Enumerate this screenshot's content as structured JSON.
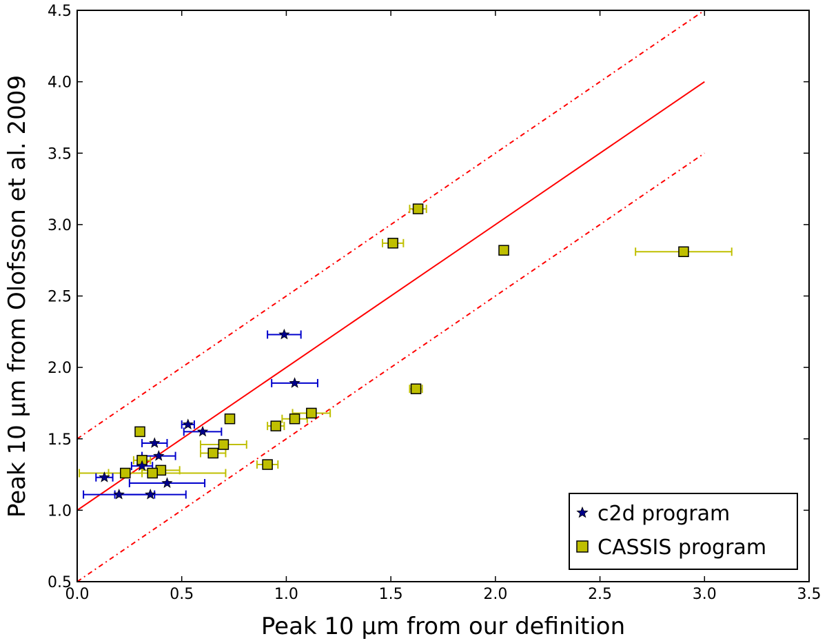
{
  "chart_data": {
    "type": "scatter",
    "title": "",
    "xlabel": "Peak 10 μm from our definition",
    "ylabel": "Peak 10 μm from Olofsson et al. 2009",
    "xlim": [
      0.0,
      3.5
    ],
    "ylim": [
      0.5,
      4.5
    ],
    "x_ticks": [
      "0.0",
      "0.5",
      "1.0",
      "1.5",
      "2.0",
      "2.5",
      "3.0",
      "3.5"
    ],
    "y_ticks": [
      "0.5",
      "1.0",
      "1.5",
      "2.0",
      "2.5",
      "3.0",
      "3.5",
      "4.0",
      "4.5"
    ],
    "grid": false,
    "legend_position": "bottom-right",
    "colors": {
      "c2d": "#00008b",
      "c2d_err": "#0000cc",
      "cassis": "#bfbf00",
      "cassis_err": "#bfbf00",
      "fit": "#ff0000"
    },
    "lines": [
      {
        "name": "one-to-one +1",
        "style": "solid",
        "x": [
          0.0,
          3.0
        ],
        "y": [
          1.0,
          4.0
        ]
      },
      {
        "name": "upper bound",
        "style": "dashdot",
        "x": [
          0.0,
          3.0
        ],
        "y": [
          1.5,
          4.5
        ]
      },
      {
        "name": "lower bound",
        "style": "dashdot",
        "x": [
          0.0,
          3.0
        ],
        "y": [
          0.5,
          3.5
        ]
      }
    ],
    "series": [
      {
        "name": "c2d program",
        "marker": "star",
        "points": [
          {
            "x": 0.99,
            "y": 2.23,
            "xerr": 0.08
          },
          {
            "x": 1.04,
            "y": 1.89,
            "xerr": 0.11
          },
          {
            "x": 0.53,
            "y": 1.6,
            "xerr": 0.03
          },
          {
            "x": 0.6,
            "y": 1.55,
            "xerr": 0.09
          },
          {
            "x": 0.37,
            "y": 1.47,
            "xerr": 0.06
          },
          {
            "x": 0.39,
            "y": 1.38,
            "xerr": 0.08
          },
          {
            "x": 0.31,
            "y": 1.31,
            "xerr": 0.05
          },
          {
            "x": 0.13,
            "y": 1.23,
            "xerr": 0.04
          },
          {
            "x": 0.43,
            "y": 1.19,
            "xerr": 0.18
          },
          {
            "x": 0.2,
            "y": 1.11,
            "xerr": 0.17
          },
          {
            "x": 0.35,
            "y": 1.11,
            "xerr": 0.17
          }
        ]
      },
      {
        "name": "CASSIS program",
        "marker": "square",
        "points": [
          {
            "x": 1.63,
            "y": 3.11,
            "xerr": 0.04
          },
          {
            "x": 1.51,
            "y": 2.87,
            "xerr": 0.05
          },
          {
            "x": 2.04,
            "y": 2.82,
            "xerr": 0.0
          },
          {
            "x": 2.9,
            "y": 2.81,
            "xerr": 0.23
          },
          {
            "x": 1.62,
            "y": 1.85,
            "xerr": 0.03
          },
          {
            "x": 1.12,
            "y": 1.68,
            "xerr": 0.09
          },
          {
            "x": 0.73,
            "y": 1.64,
            "xerr": 0.0
          },
          {
            "x": 1.04,
            "y": 1.64,
            "xerr": 0.06
          },
          {
            "x": 0.95,
            "y": 1.59,
            "xerr": 0.04
          },
          {
            "x": 0.3,
            "y": 1.55,
            "xerr": 0.0
          },
          {
            "x": 0.7,
            "y": 1.46,
            "xerr": 0.11
          },
          {
            "x": 0.65,
            "y": 1.4,
            "xerr": 0.06
          },
          {
            "x": 0.31,
            "y": 1.35,
            "xerr": 0.04
          },
          {
            "x": 0.91,
            "y": 1.32,
            "xerr": 0.05
          },
          {
            "x": 0.4,
            "y": 1.28,
            "xerr": 0.09
          },
          {
            "x": 0.23,
            "y": 1.26,
            "xerr": 0.08
          },
          {
            "x": 0.36,
            "y": 1.26,
            "xerr": 0.35
          }
        ]
      }
    ]
  }
}
